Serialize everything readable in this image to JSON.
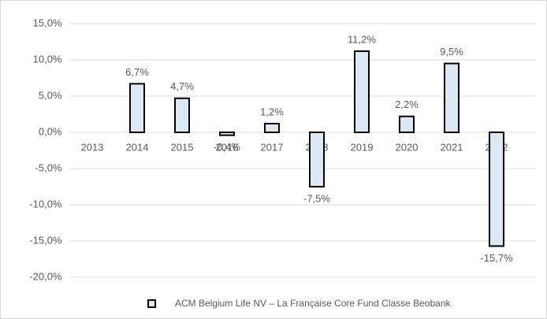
{
  "chart_data": {
    "type": "bar",
    "categories": [
      "2013",
      "2014",
      "2015",
      "2016",
      "2017",
      "2018",
      "2019",
      "2020",
      "2021",
      "2022"
    ],
    "series": [
      {
        "name": "ACM Belgium Life NV – La Française Core Fund Classe Beobank",
        "color": "#dce9f5",
        "values": [
          null,
          6.7,
          4.7,
          -0.4,
          1.2,
          -7.5,
          11.2,
          2.2,
          9.5,
          -15.7
        ],
        "value_labels": [
          null,
          "6,7%",
          "4,7%",
          "-0,4%",
          "1,2%",
          "-7,5%",
          "11,2%",
          "2,2%",
          "9,5%",
          "-15,7%"
        ]
      }
    ],
    "ylim": [
      -20,
      15
    ],
    "yticks": [
      {
        "value": -20,
        "label": "-20,0%"
      },
      {
        "value": -15,
        "label": "-15,0%"
      },
      {
        "value": -10,
        "label": "-10,0%"
      },
      {
        "value": -5,
        "label": "-5,0%"
      },
      {
        "value": 0,
        "label": "0,0%"
      },
      {
        "value": 5,
        "label": "5,0%"
      },
      {
        "value": 10,
        "label": "10,0%"
      },
      {
        "value": 15,
        "label": "15,0%"
      }
    ],
    "grid": true,
    "legend": "bottom"
  }
}
